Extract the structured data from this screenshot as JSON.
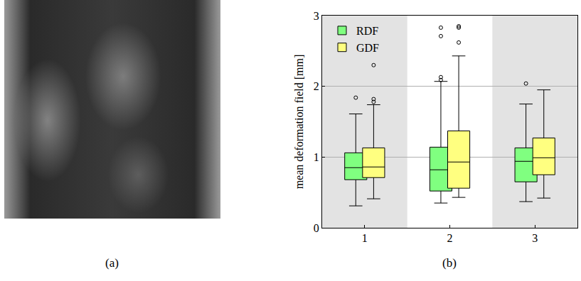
{
  "chart_data": {
    "type": "box",
    "ylabel": "mean deformation field [mm]",
    "x": [
      1,
      2,
      3
    ],
    "xlim": [
      0.5,
      3.5
    ],
    "xticks": [
      1,
      2,
      3
    ],
    "ylim": [
      0,
      3
    ],
    "yticks": [
      0,
      1,
      2,
      3
    ],
    "grid": true,
    "legend": "upper left",
    "series": [
      {
        "name": "RDF",
        "color": "#80ff80",
        "lowerfence": [
          0.31,
          0.35,
          0.37
        ],
        "q1": [
          0.68,
          0.52,
          0.65
        ],
        "median": [
          0.85,
          0.82,
          0.94
        ],
        "q3": [
          1.06,
          1.14,
          1.13
        ],
        "upperfence": [
          1.61,
          2.07,
          1.75
        ],
        "outliers": [
          [
            1.84
          ],
          [
            2.83,
            2.71,
            2.13,
            2.09
          ],
          [
            2.04
          ]
        ]
      },
      {
        "name": "GDF",
        "color": "#ffff80",
        "lowerfence": [
          0.41,
          0.43,
          0.42
        ],
        "q1": [
          0.71,
          0.56,
          0.75
        ],
        "median": [
          0.86,
          0.93,
          0.99
        ],
        "q3": [
          1.13,
          1.37,
          1.27
        ],
        "upperfence": [
          1.74,
          2.43,
          1.95
        ],
        "outliers": [
          [
            2.3,
            1.82,
            1.78
          ],
          [
            2.85,
            2.83,
            2.62
          ],
          []
        ]
      }
    ]
  },
  "captions": [
    "(a)",
    "(b)"
  ]
}
